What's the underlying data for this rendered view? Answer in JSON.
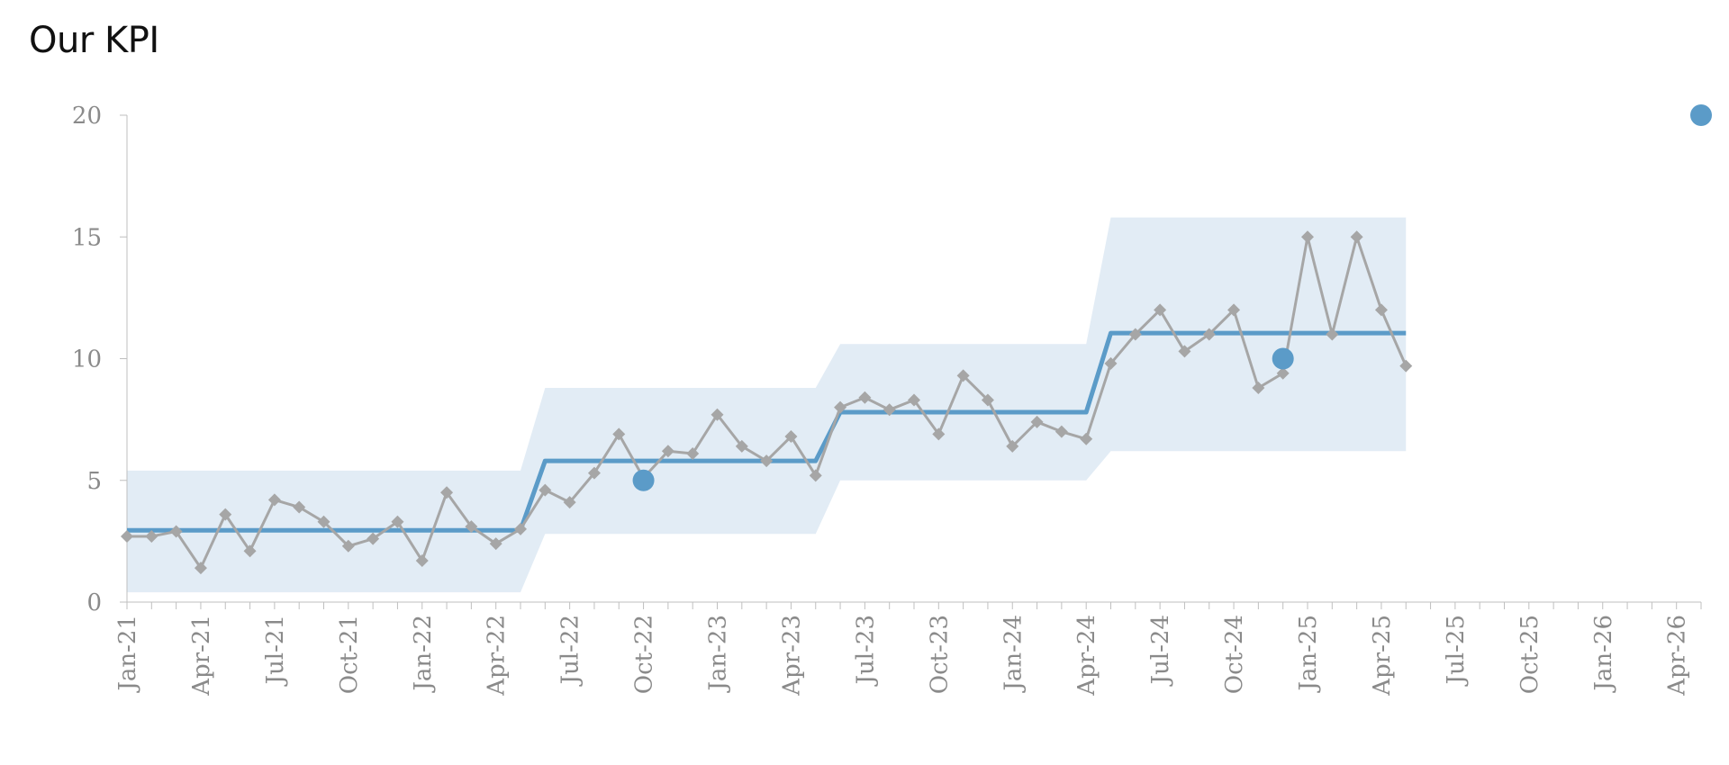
{
  "chart_data": {
    "type": "line",
    "title": "Our KPI",
    "xlabel": "",
    "ylabel": "",
    "ylim": [
      0,
      20
    ],
    "y_ticks": [
      0,
      5,
      10,
      15,
      20
    ],
    "x_tick_labels": [
      "Jan-21",
      "Apr-21",
      "Jul-21",
      "Oct-21",
      "Jan-22",
      "Apr-22",
      "Jul-22",
      "Oct-22",
      "Jan-23",
      "Apr-23",
      "Jul-23",
      "Oct-23",
      "Jan-24",
      "Apr-24",
      "Jul-24",
      "Oct-24",
      "Jan-25",
      "Apr-25",
      "Jul-25",
      "Oct-25",
      "Jan-26",
      "Apr-26"
    ],
    "x_start": "Jan-21",
    "x_end": "May-26",
    "grid": false,
    "legend": "none",
    "colors": {
      "actual": "#a6a6a6",
      "mean": "#5b9bc8",
      "band": "#e2ecf5",
      "marker": "#5b9bc8",
      "axis": "#bfbfbf",
      "tick_text": "#8a8a8a"
    },
    "series": [
      {
        "role": "actual",
        "marker": "diamond",
        "points": [
          {
            "x": "Jan-21",
            "y": 2.7
          },
          {
            "x": "Feb-21",
            "y": 2.7
          },
          {
            "x": "Mar-21",
            "y": 2.9
          },
          {
            "x": "Apr-21",
            "y": 1.4
          },
          {
            "x": "May-21",
            "y": 3.6
          },
          {
            "x": "Jun-21",
            "y": 2.1
          },
          {
            "x": "Jul-21",
            "y": 4.2
          },
          {
            "x": "Aug-21",
            "y": 3.9
          },
          {
            "x": "Sep-21",
            "y": 3.3
          },
          {
            "x": "Oct-21",
            "y": 2.3
          },
          {
            "x": "Nov-21",
            "y": 2.6
          },
          {
            "x": "Dec-21",
            "y": 3.3
          },
          {
            "x": "Jan-22",
            "y": 1.7
          },
          {
            "x": "Feb-22",
            "y": 4.5
          },
          {
            "x": "Mar-22",
            "y": 3.1
          },
          {
            "x": "Apr-22",
            "y": 2.4
          },
          {
            "x": "May-22",
            "y": 3.0
          },
          {
            "x": "Jun-22",
            "y": 4.6
          },
          {
            "x": "Jul-22",
            "y": 4.1
          },
          {
            "x": "Aug-22",
            "y": 5.3
          },
          {
            "x": "Sep-22",
            "y": 6.9
          },
          {
            "x": "Oct-22",
            "y": 5.1
          },
          {
            "x": "Nov-22",
            "y": 6.2
          },
          {
            "x": "Dec-22",
            "y": 6.1
          },
          {
            "x": "Jan-23",
            "y": 7.7
          },
          {
            "x": "Feb-23",
            "y": 6.4
          },
          {
            "x": "Mar-23",
            "y": 5.8
          },
          {
            "x": "Apr-23",
            "y": 6.8
          },
          {
            "x": "May-23",
            "y": 5.2
          },
          {
            "x": "Jun-23",
            "y": 8.0
          },
          {
            "x": "Jul-23",
            "y": 8.4
          },
          {
            "x": "Aug-23",
            "y": 7.9
          },
          {
            "x": "Sep-23",
            "y": 8.3
          },
          {
            "x": "Oct-23",
            "y": 6.9
          },
          {
            "x": "Nov-23",
            "y": 9.3
          },
          {
            "x": "Dec-23",
            "y": 8.3
          },
          {
            "x": "Jan-24",
            "y": 6.4
          },
          {
            "x": "Feb-24",
            "y": 7.4
          },
          {
            "x": "Mar-24",
            "y": 7.0
          },
          {
            "x": "Apr-24",
            "y": 6.7
          },
          {
            "x": "May-24",
            "y": 9.8
          },
          {
            "x": "Jun-24",
            "y": 11.0
          },
          {
            "x": "Jul-24",
            "y": 12.0
          },
          {
            "x": "Aug-24",
            "y": 10.3
          },
          {
            "x": "Sep-24",
            "y": 11.0
          },
          {
            "x": "Oct-24",
            "y": 12.0
          },
          {
            "x": "Nov-24",
            "y": 8.8
          },
          {
            "x": "Dec-24",
            "y": 9.4
          },
          {
            "x": "Jan-25",
            "y": 15.0
          },
          {
            "x": "Feb-25",
            "y": 11.0
          },
          {
            "x": "Mar-25",
            "y": 15.0
          },
          {
            "x": "Apr-25",
            "y": 12.0
          },
          {
            "x": "May-25",
            "y": 9.7
          }
        ]
      },
      {
        "role": "mean",
        "points": [
          {
            "x": "Jan-21",
            "y": 2.95
          },
          {
            "x": "May-22",
            "y": 2.95
          },
          {
            "x": "Jun-22",
            "y": 5.8
          },
          {
            "x": "May-23",
            "y": 5.8
          },
          {
            "x": "Jun-23",
            "y": 7.8
          },
          {
            "x": "Apr-24",
            "y": 7.8
          },
          {
            "x": "May-24",
            "y": 11.05
          },
          {
            "x": "May-25",
            "y": 11.05
          }
        ]
      },
      {
        "role": "band",
        "upper": [
          {
            "x": "Jan-21",
            "y": 5.4
          },
          {
            "x": "May-22",
            "y": 5.4
          },
          {
            "x": "Jun-22",
            "y": 8.8
          },
          {
            "x": "May-23",
            "y": 8.8
          },
          {
            "x": "Jun-23",
            "y": 10.6
          },
          {
            "x": "Apr-24",
            "y": 10.6
          },
          {
            "x": "May-24",
            "y": 15.8
          },
          {
            "x": "May-25",
            "y": 15.8
          }
        ],
        "lower": [
          {
            "x": "Jan-21",
            "y": 0.4
          },
          {
            "x": "May-22",
            "y": 0.4
          },
          {
            "x": "Jun-22",
            "y": 2.8
          },
          {
            "x": "May-23",
            "y": 2.8
          },
          {
            "x": "Jun-23",
            "y": 5.0
          },
          {
            "x": "Apr-24",
            "y": 5.0
          },
          {
            "x": "May-24",
            "y": 6.2
          },
          {
            "x": "May-25",
            "y": 6.2
          }
        ]
      }
    ],
    "annotations": [
      {
        "x": "Oct-22",
        "y": 5.0
      },
      {
        "x": "Dec-24",
        "y": 10.0
      },
      {
        "x": "May-26",
        "y": 20.0
      }
    ]
  }
}
